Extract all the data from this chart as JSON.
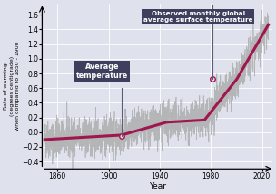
{
  "title_box1": "Observed monthly global\naverage surface temperature",
  "title_box2": "Average\ntemperature",
  "xlabel": "Year",
  "ylabel": "Rate of warming\n(degrees centigrade)\nwhen compared to 1850 - 1900",
  "xlim": [
    1848,
    2028
  ],
  "ylim": [
    -0.5,
    1.75
  ],
  "yticks": [
    -0.4,
    -0.2,
    0.0,
    0.2,
    0.4,
    0.6,
    0.8,
    1.0,
    1.2,
    1.4,
    1.6
  ],
  "xticks": [
    1860,
    1900,
    1940,
    1980,
    2020
  ],
  "box_color": "#3d3f5c",
  "box_text_color": "#ffffff",
  "smooth_color": "#a0174f",
  "raw_color": "#b0b0b0",
  "background_color": "#dfe2ed",
  "grid_color": "#ffffff",
  "annotation_line_color": "#5a5c7a",
  "avg_temp_marker_year": 1910,
  "avg_temp_marker_val": -0.05,
  "obs_marker_year": 1981,
  "obs_marker_val": 0.73
}
